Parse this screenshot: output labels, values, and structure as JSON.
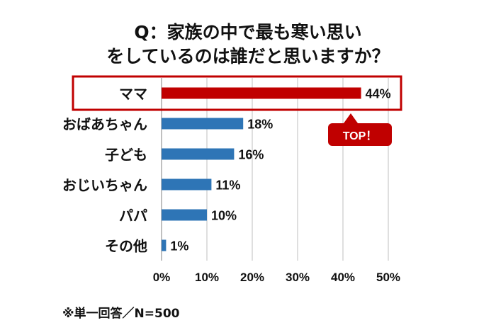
{
  "chart_data": {
    "type": "bar",
    "orientation": "horizontal",
    "title_line1": "Q：家族の中で最も寒い思い",
    "title_line2": "をしているのは誰だと思いますか？",
    "categories": [
      "ママ",
      "おばあちゃん",
      "子ども",
      "おじいちゃん",
      "パパ",
      "その他"
    ],
    "values": [
      44,
      18,
      16,
      11,
      10,
      1
    ],
    "value_labels": [
      "44%",
      "18%",
      "16%",
      "11%",
      "10%",
      "1%"
    ],
    "xlim": [
      0,
      50
    ],
    "x_ticks": [
      "0%",
      "10%",
      "20%",
      "30%",
      "40%",
      "50%"
    ],
    "grid": true,
    "highlight_index": 0,
    "colors": {
      "highlight": "#c00000",
      "default": "#2e75b6",
      "grid": "#bfbfbf"
    }
  },
  "callout": {
    "label": "TOP！"
  },
  "footnote": "※単一回答／N=500"
}
